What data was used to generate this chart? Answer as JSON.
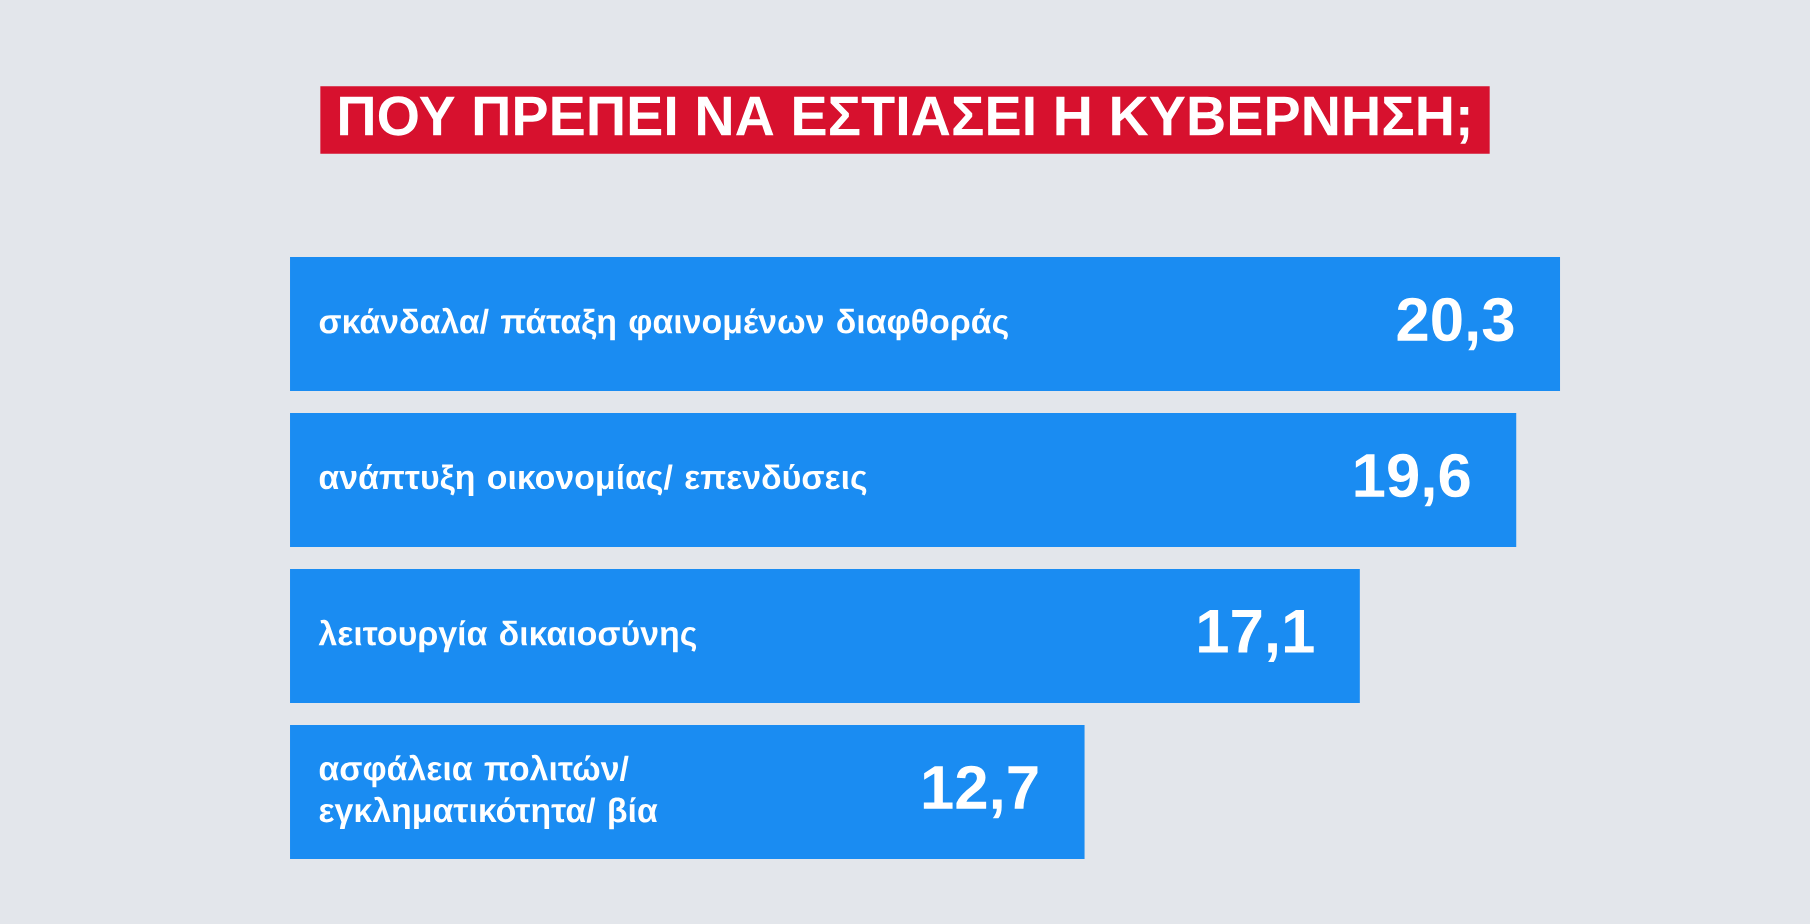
{
  "chart_data": {
    "type": "bar",
    "orientation": "horizontal",
    "title": "ΠΟΥ ΠΡΕΠΕΙ ΝΑ ΕΣΤΙΑΣΕΙ Η ΚΥΒΕΡΝΗΣΗ;",
    "categories": [
      "σκάνδαλα/ πάταξη φαινομένων διαφθοράς",
      "ανάπτυξη οικονομίας/ επενδύσεις",
      "λειτουργία δικαιοσύνης",
      "ασφάλεια πολιτών/ εγκληματικότητα/ βία"
    ],
    "values": [
      20.3,
      19.6,
      17.1,
      12.7
    ],
    "value_labels": [
      "20,3",
      "19,6",
      "17,1",
      "12,7"
    ],
    "color": "#1a8cf2"
  }
}
